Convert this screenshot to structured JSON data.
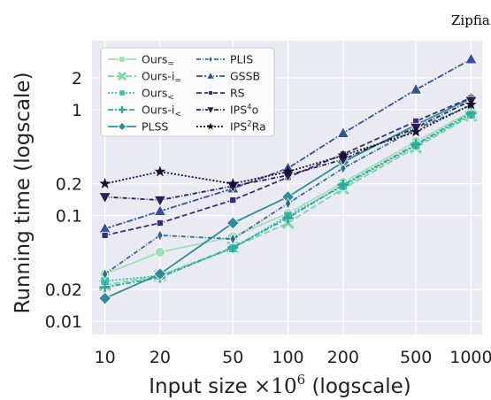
{
  "corner_title": "Zipfia",
  "chart_data": {
    "type": "line",
    "title": "",
    "xlabel_main": "Input size ",
    "xlabel_unit": "×10",
    "xlabel_exp": "6",
    "xlabel_suffix": " (logscale)",
    "ylabel": "Running time (logscale)",
    "xscale": "log",
    "yscale": "log",
    "grid": true,
    "legend_position": "top-left",
    "xlim": [
      8.5,
      1150
    ],
    "ylim": [
      0.0075,
      4.5
    ],
    "x": [
      10,
      20,
      50,
      100,
      200,
      500,
      1000
    ],
    "x_tick_labels": [
      "10",
      "20",
      "50",
      "100",
      "200",
      "500",
      "1000"
    ],
    "y_ticks": [
      0.01,
      0.02,
      0.1,
      0.2,
      1,
      2
    ],
    "y_tick_labels": [
      "0.01",
      "0.02",
      "0.1",
      "0.2",
      "1",
      "2"
    ],
    "series": [
      {
        "name": "Ours",
        "sub": "=",
        "sup": "",
        "color": "#9fe0b5",
        "dash": "",
        "marker": "circle",
        "values": [
          0.028,
          0.045,
          0.063,
          0.105,
          0.205,
          0.5,
          0.96
        ]
      },
      {
        "name": "Ours-i",
        "sub": "=",
        "sup": "",
        "color": "#7dd6a7",
        "dash": "7,3",
        "marker": "x",
        "values": [
          0.022,
          0.027,
          0.05,
          0.085,
          0.18,
          0.44,
          0.88
        ]
      },
      {
        "name": "Ours",
        "sub": "<",
        "sup": "",
        "color": "#3cbfa3",
        "dash": "2,2",
        "marker": "square",
        "values": [
          0.024,
          0.027,
          0.049,
          0.1,
          0.19,
          0.46,
          0.9
        ]
      },
      {
        "name": "Ours-i",
        "sub": "<",
        "sup": "",
        "color": "#2ea79c",
        "dash": "6,2,2,2",
        "marker": "plus",
        "values": [
          0.021,
          0.026,
          0.05,
          0.095,
          0.195,
          0.47,
          0.93
        ]
      },
      {
        "name": "PLSS",
        "sub": "",
        "sup": "",
        "color": "#2c8f97",
        "dash": "",
        "marker": "diamond",
        "values": [
          0.0165,
          0.028,
          0.085,
          0.15,
          0.32,
          0.72,
          1.28
        ]
      },
      {
        "name": "PLIS",
        "sub": "",
        "sup": "",
        "color": "#2f6c93",
        "dash": "5,2,1,2",
        "marker": "thin-diamond",
        "values": [
          0.028,
          0.065,
          0.06,
          0.13,
          0.28,
          0.66,
          1.1
        ]
      },
      {
        "name": "GSSB",
        "sub": "",
        "sup": "",
        "color": "#34519a",
        "dash": "7,2,2,2",
        "marker": "triangle-up",
        "values": [
          0.075,
          0.11,
          0.18,
          0.28,
          0.6,
          1.55,
          3.0
        ]
      },
      {
        "name": "RS",
        "sub": "",
        "sup": "",
        "color": "#372f7a",
        "dash": "6,3",
        "marker": "square-small",
        "values": [
          0.065,
          0.085,
          0.14,
          0.23,
          0.38,
          0.78,
          1.3
        ]
      },
      {
        "name": "IPS",
        "sub": "",
        "sup": "4",
        "suffix": "o",
        "color": "#2a1e55",
        "dash": "5,2,1,2",
        "marker": "triangle-down",
        "values": [
          0.15,
          0.14,
          0.19,
          0.24,
          0.34,
          0.68,
          1.22
        ]
      },
      {
        "name": "IPS",
        "sub": "",
        "sup": "2",
        "suffix": "Ra",
        "color": "#170f30",
        "dash": "2,2",
        "marker": "star",
        "values": [
          0.2,
          0.26,
          0.2,
          0.26,
          0.37,
          0.62,
          1.12
        ]
      }
    ]
  }
}
